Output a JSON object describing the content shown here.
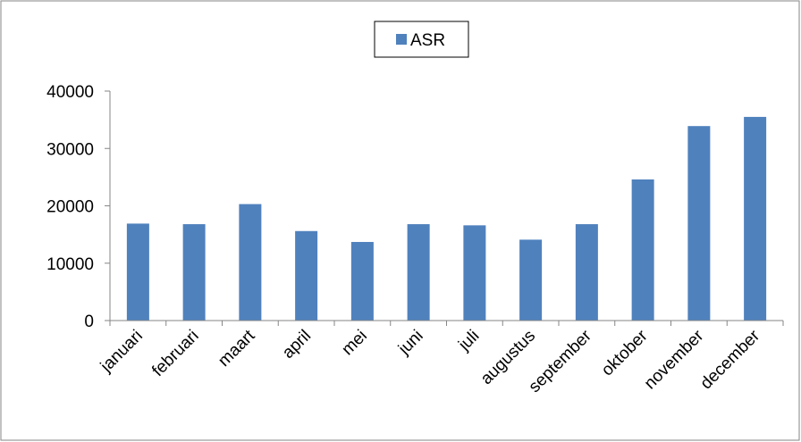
{
  "chart_data": {
    "type": "bar",
    "title": "",
    "xlabel": "",
    "ylabel": "",
    "categories": [
      "januari",
      "februari",
      "maart",
      "april",
      "mei",
      "juni",
      "juli",
      "augustus",
      "september",
      "oktober",
      "november",
      "december"
    ],
    "series": [
      {
        "name": "ASR",
        "color": "#4f81bd",
        "values": [
          16900,
          16800,
          20300,
          15600,
          13700,
          16800,
          16600,
          14100,
          16800,
          24600,
          33900,
          35500
        ]
      }
    ],
    "ylim": [
      0,
      40000
    ],
    "yticks": [
      0,
      10000,
      20000,
      30000,
      40000
    ],
    "ytick_labels": [
      "0",
      "10000",
      "20000",
      "30000",
      "40000"
    ],
    "grid": false,
    "legend": "top-center",
    "colors": {
      "bar": "#4f81bd",
      "axis": "#868686",
      "frame": "#868686"
    }
  }
}
